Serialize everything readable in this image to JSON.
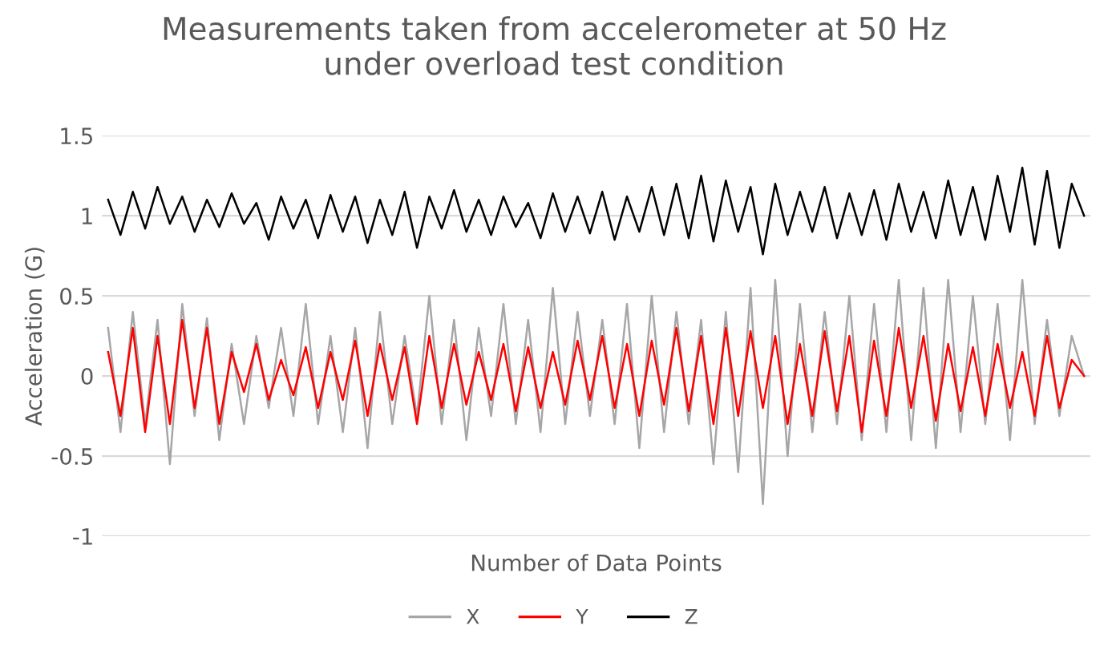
{
  "chart_data": {
    "type": "line",
    "title": "Measurements taken from accelerometer at 50 Hz\nunder overload test condition",
    "xlabel": "Number of Data Points",
    "ylabel": "Acceleration (G)",
    "categories": [
      null,
      null,
      null,
      null,
      null,
      null,
      null,
      null,
      null,
      null,
      null,
      null,
      null,
      null,
      null,
      null,
      null,
      null,
      null,
      null,
      null,
      null,
      null,
      null,
      null,
      null,
      null,
      null,
      null,
      null,
      null,
      null,
      null,
      null,
      null,
      null,
      null,
      null,
      null,
      null,
      null,
      null,
      null,
      null,
      null,
      null,
      null,
      null,
      null,
      null,
      null,
      null,
      null,
      null,
      null,
      null,
      null,
      null,
      null,
      null,
      null,
      null,
      null,
      null,
      null,
      null,
      null,
      null,
      null,
      null,
      null,
      null,
      null,
      null,
      null,
      null,
      null,
      null,
      null,
      null
    ],
    "ylim": [
      -1,
      1.5
    ],
    "yticks": [
      {
        "value": -1,
        "label": "-1"
      },
      {
        "value": -0.5,
        "label": "-0.5"
      },
      0,
      0.5,
      1,
      1.5
    ],
    "grid": "y",
    "legend": "bottom",
    "tick_labels": "y",
    "marker": "none",
    "line_style": "solid",
    "series": [
      {
        "name": "X",
        "color": "#a6a6a6",
        "values": [
          0.3,
          -0.35,
          0.4,
          -0.3,
          0.35,
          -0.55,
          0.45,
          -0.25,
          0.36,
          -0.4,
          0.2,
          -0.3,
          0.25,
          -0.2,
          0.3,
          -0.25,
          0.45,
          -0.3,
          0.25,
          -0.35,
          0.3,
          -0.45,
          0.4,
          -0.3,
          0.25,
          -0.25,
          0.5,
          -0.3,
          0.35,
          -0.4,
          0.3,
          -0.25,
          0.45,
          -0.3,
          0.35,
          -0.35,
          0.55,
          -0.3,
          0.4,
          -0.25,
          0.35,
          -0.3,
          0.45,
          -0.45,
          0.5,
          -0.35,
          0.4,
          -0.3,
          0.35,
          -0.55,
          0.4,
          -0.6,
          0.55,
          -0.8,
          0.6,
          -0.5,
          0.45,
          -0.35,
          0.4,
          -0.3,
          0.5,
          -0.4,
          0.45,
          -0.35,
          0.6,
          -0.4,
          0.55,
          -0.45,
          0.6,
          -0.35,
          0.5,
          -0.3,
          0.45,
          -0.4,
          0.6,
          -0.3,
          0.35,
          -0.25,
          0.25,
          0.0
        ]
      },
      {
        "name": "Y",
        "color": "#ff0000",
        "values": [
          0.15,
          -0.25,
          0.3,
          -0.35,
          0.25,
          -0.3,
          0.35,
          -0.2,
          0.3,
          -0.3,
          0.15,
          -0.1,
          0.2,
          -0.15,
          0.1,
          -0.12,
          0.18,
          -0.2,
          0.15,
          -0.15,
          0.22,
          -0.25,
          0.2,
          -0.15,
          0.18,
          -0.3,
          0.25,
          -0.2,
          0.2,
          -0.18,
          0.15,
          -0.15,
          0.2,
          -0.22,
          0.18,
          -0.2,
          0.15,
          -0.18,
          0.22,
          -0.15,
          0.25,
          -0.2,
          0.2,
          -0.25,
          0.22,
          -0.18,
          0.3,
          -0.22,
          0.25,
          -0.3,
          0.3,
          -0.25,
          0.28,
          -0.2,
          0.25,
          -0.3,
          0.2,
          -0.25,
          0.28,
          -0.22,
          0.25,
          -0.35,
          0.22,
          -0.25,
          0.3,
          -0.2,
          0.25,
          -0.28,
          0.2,
          -0.22,
          0.18,
          -0.25,
          0.2,
          -0.2,
          0.15,
          -0.25,
          0.25,
          -0.2,
          0.1,
          0.0
        ]
      },
      {
        "name": "Z",
        "color": "#000000",
        "values": [
          1.1,
          0.88,
          1.15,
          0.92,
          1.18,
          0.95,
          1.12,
          0.9,
          1.1,
          0.93,
          1.14,
          0.95,
          1.08,
          0.85,
          1.12,
          0.92,
          1.1,
          0.86,
          1.13,
          0.9,
          1.12,
          0.83,
          1.1,
          0.88,
          1.15,
          0.8,
          1.12,
          0.92,
          1.16,
          0.9,
          1.1,
          0.88,
          1.12,
          0.93,
          1.08,
          0.86,
          1.14,
          0.9,
          1.12,
          0.89,
          1.15,
          0.85,
          1.12,
          0.9,
          1.18,
          0.88,
          1.2,
          0.86,
          1.25,
          0.84,
          1.22,
          0.9,
          1.18,
          0.76,
          1.2,
          0.88,
          1.15,
          0.9,
          1.18,
          0.86,
          1.14,
          0.88,
          1.16,
          0.85,
          1.2,
          0.9,
          1.15,
          0.86,
          1.22,
          0.88,
          1.18,
          0.85,
          1.25,
          0.9,
          1.3,
          0.82,
          1.28,
          0.8,
          1.2,
          1.0
        ]
      }
    ]
  }
}
